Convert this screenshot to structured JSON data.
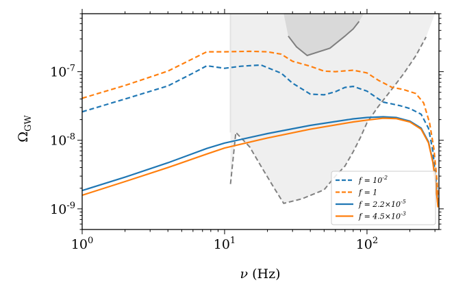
{
  "chart_data": {
    "type": "line",
    "xscale": "log",
    "yscale": "log",
    "xlim": [
      1,
      320
    ],
    "ylim": [
      5e-10,
      7e-07
    ],
    "xlabel": "ν (Hz)",
    "ylabel": "Ω_GW",
    "xticks": [
      {
        "value": 1,
        "base": "10",
        "exp": "0"
      },
      {
        "value": 10,
        "base": "10",
        "exp": "1"
      },
      {
        "value": 100,
        "base": "10",
        "exp": "2"
      }
    ],
    "yticks": [
      {
        "value": 1e-09,
        "base": "10",
        "exp": "-9"
      },
      {
        "value": 1e-08,
        "base": "10",
        "exp": "-8"
      },
      {
        "value": 1e-07,
        "base": "10",
        "exp": "-7"
      }
    ],
    "legend": {
      "placement": "lower-right",
      "entries": [
        {
          "label": "f = 10-2",
          "pre": "f = 10",
          "sup": "-2",
          "post": "",
          "color": "#1f77b4",
          "style": "dashed"
        },
        {
          "label": "f = 1",
          "pre": "f = 1",
          "sup": "",
          "post": "",
          "color": "#ff7f0e",
          "style": "dashed"
        },
        {
          "label": "f = 2.2×10-5",
          "pre": "f = 2.2×10",
          "sup": "-5",
          "post": "",
          "color": "#1f77b4",
          "style": "solid"
        },
        {
          "label": "f = 4.5×10-3",
          "pre": "f = 4.5×10",
          "sup": "-3",
          "post": "",
          "color": "#ff7f0e",
          "style": "solid"
        }
      ]
    },
    "series": [
      {
        "name": "f = 10-2",
        "color": "#1f77b4",
        "style": "dashed",
        "points": [
          [
            1,
            2.6e-08
          ],
          [
            2,
            4e-08
          ],
          [
            4,
            6.2e-08
          ],
          [
            6,
            9.5e-08
          ],
          [
            7.5,
            1.22e-07
          ],
          [
            10,
            1.12e-07
          ],
          [
            13,
            1.2e-07
          ],
          [
            18,
            1.25e-07
          ],
          [
            25,
            9.5e-08
          ],
          [
            30,
            6.8e-08
          ],
          [
            40,
            4.7e-08
          ],
          [
            50,
            4.6e-08
          ],
          [
            60,
            5.1e-08
          ],
          [
            70,
            5.9e-08
          ],
          [
            80,
            6.1e-08
          ],
          [
            100,
            5.2e-08
          ],
          [
            130,
            3.6e-08
          ],
          [
            170,
            3.2e-08
          ],
          [
            200,
            2.9e-08
          ],
          [
            240,
            2.4e-08
          ],
          [
            270,
            1.5e-08
          ],
          [
            290,
            7e-09
          ],
          [
            305,
            2.6e-09
          ],
          [
            315,
            1.15e-09
          ]
        ]
      },
      {
        "name": "f = 1",
        "color": "#ff7f0e",
        "style": "dashed",
        "points": [
          [
            1,
            4.1e-08
          ],
          [
            2,
            6.3e-08
          ],
          [
            4,
            1.02e-07
          ],
          [
            6,
            1.55e-07
          ],
          [
            7.5,
            1.95e-07
          ],
          [
            10,
            1.95e-07
          ],
          [
            15,
            1.98e-07
          ],
          [
            20,
            1.95e-07
          ],
          [
            25,
            1.8e-07
          ],
          [
            30,
            1.42e-07
          ],
          [
            40,
            1.2e-07
          ],
          [
            50,
            1.02e-07
          ],
          [
            60,
            1e-07
          ],
          [
            80,
            1.05e-07
          ],
          [
            100,
            9.6e-08
          ],
          [
            120,
            7.5e-08
          ],
          [
            150,
            5.9e-08
          ],
          [
            180,
            5.5e-08
          ],
          [
            220,
            4.8e-08
          ],
          [
            250,
            3.5e-08
          ],
          [
            275,
            1.8e-08
          ],
          [
            295,
            7.5e-09
          ],
          [
            310,
            2.6e-09
          ],
          [
            318,
            1.15e-09
          ]
        ]
      },
      {
        "name": "f = 2.2×10-5",
        "color": "#1f77b4",
        "style": "solid",
        "points": [
          [
            1,
            1.85e-09
          ],
          [
            2,
            2.9e-09
          ],
          [
            4,
            4.7e-09
          ],
          [
            7.5,
            7.6e-09
          ],
          [
            10,
            9.1e-09
          ],
          [
            20,
            1.25e-08
          ],
          [
            40,
            1.65e-08
          ],
          [
            80,
            2.05e-08
          ],
          [
            100,
            2.15e-08
          ],
          [
            130,
            2.2e-08
          ],
          [
            160,
            2.15e-08
          ],
          [
            200,
            1.9e-08
          ],
          [
            240,
            1.5e-08
          ],
          [
            270,
            9.5e-09
          ],
          [
            290,
            5e-09
          ],
          [
            305,
            2.2e-09
          ],
          [
            315,
            1.1e-09
          ]
        ]
      },
      {
        "name": "f = 4.5×10-3",
        "color": "#ff7f0e",
        "style": "solid",
        "points": [
          [
            1,
            1.58e-09
          ],
          [
            2,
            2.5e-09
          ],
          [
            4,
            4e-09
          ],
          [
            7.5,
            6.3e-09
          ],
          [
            10,
            7.7e-09
          ],
          [
            20,
            1.08e-08
          ],
          [
            40,
            1.45e-08
          ],
          [
            80,
            1.85e-08
          ],
          [
            100,
            1.97e-08
          ],
          [
            130,
            2.1e-08
          ],
          [
            160,
            2.07e-08
          ],
          [
            200,
            1.85e-08
          ],
          [
            240,
            1.45e-08
          ],
          [
            270,
            9.2e-09
          ],
          [
            290,
            4.8e-09
          ],
          [
            305,
            2.1e-09
          ],
          [
            315,
            1.05e-09
          ]
        ]
      }
    ],
    "regions": [
      {
        "name": "sensitivity-light",
        "fill": "#efefef",
        "edge": "#808080",
        "edge_style": "dashed",
        "boundary": [
          [
            11,
            7e-07
          ],
          [
            11,
            2.3e-09
          ],
          [
            12,
            1.3e-08
          ],
          [
            15,
            8e-09
          ],
          [
            18,
            4.2e-09
          ],
          [
            22,
            2.1e-09
          ],
          [
            26,
            1.2e-09
          ],
          [
            35,
            1.4e-09
          ],
          [
            50,
            1.9e-09
          ],
          [
            60,
            3e-09
          ],
          [
            70,
            4.2e-09
          ],
          [
            80,
            6.8e-09
          ],
          [
            90,
            1.1e-08
          ],
          [
            100,
            1.8e-08
          ],
          [
            120,
            3.1e-08
          ],
          [
            150,
            5.6e-08
          ],
          [
            180,
            9.2e-08
          ],
          [
            220,
            1.7e-07
          ],
          [
            260,
            3.2e-07
          ],
          [
            300,
            7e-07
          ]
        ]
      },
      {
        "name": "sensitivity-dark",
        "fill": "#d9d9d9",
        "edge": "#7f7f7f",
        "edge_style": "solid",
        "boundary": [
          [
            26,
            7e-07
          ],
          [
            28,
            3.3e-07
          ],
          [
            32,
            2.3e-07
          ],
          [
            38,
            1.72e-07
          ],
          [
            55,
            2.2e-07
          ],
          [
            70,
            3.3e-07
          ],
          [
            80,
            4.2e-07
          ],
          [
            88,
            5.4e-07
          ],
          [
            95,
            7e-07
          ]
        ]
      }
    ]
  }
}
